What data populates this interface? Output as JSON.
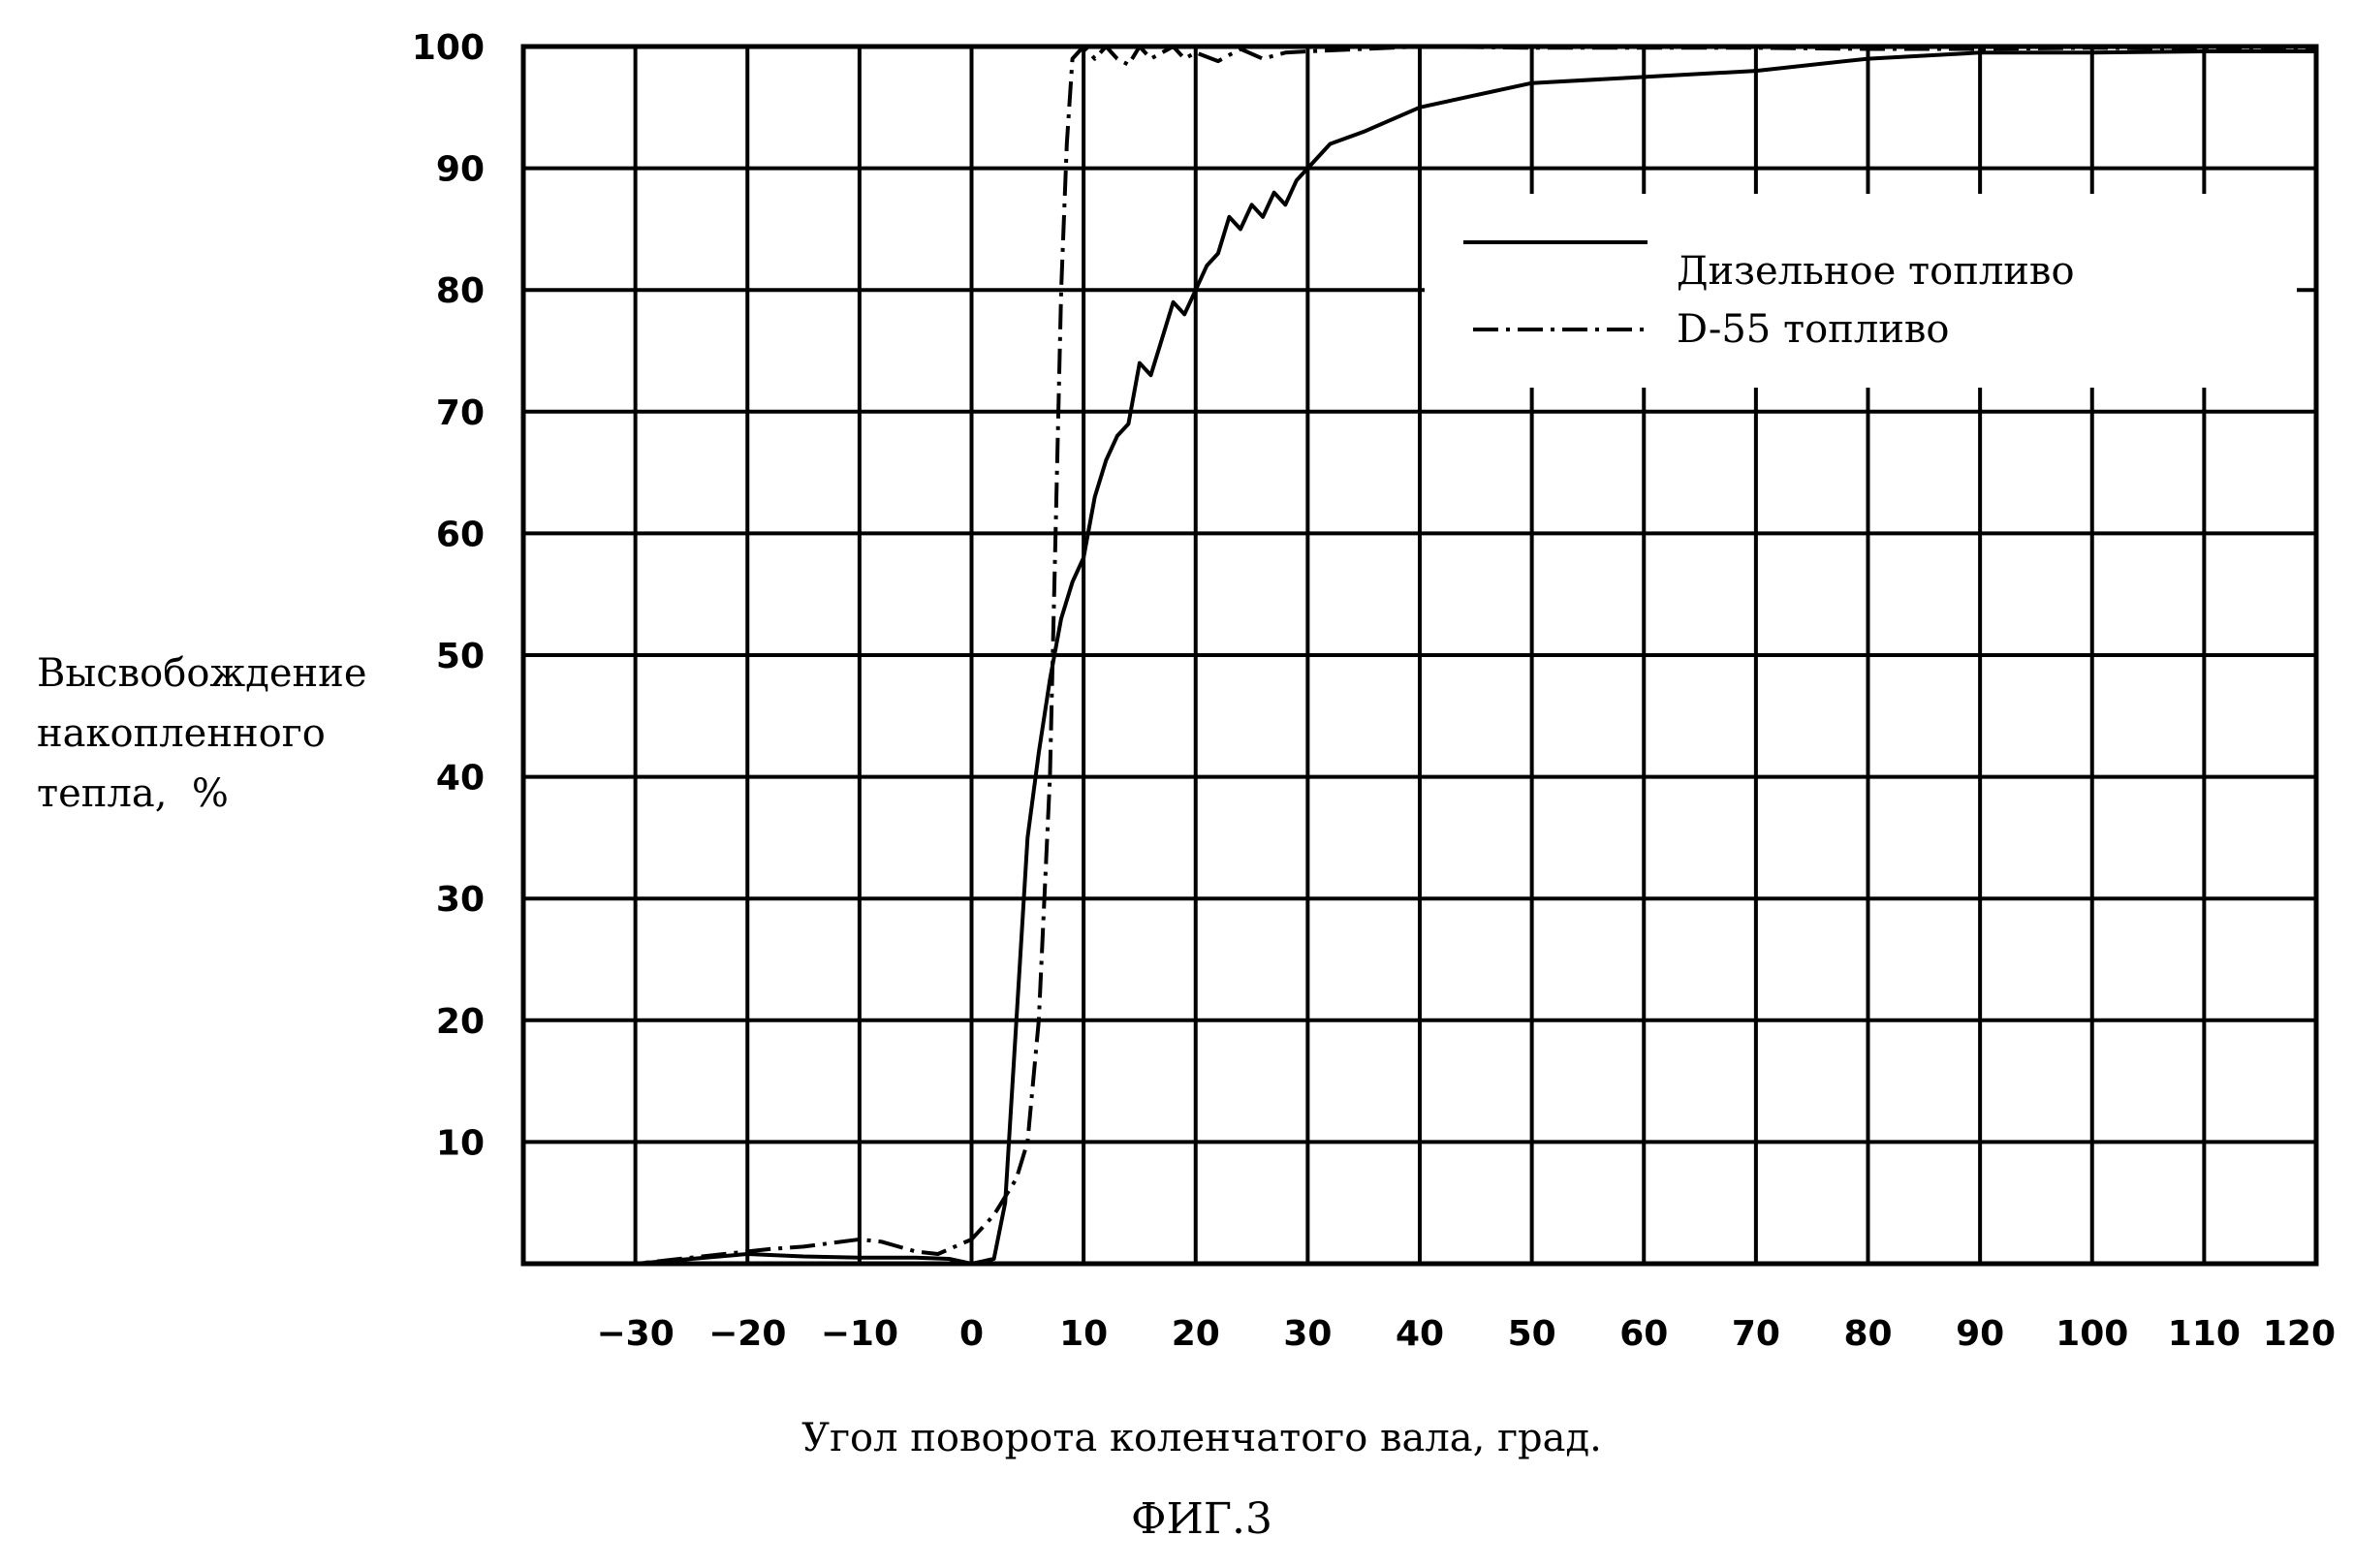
{
  "chart_data": {
    "type": "line",
    "xlabel": "Угол поворота коленчатого вала, град.",
    "ylabel_lines": [
      "Высвобождение",
      "накопленного",
      "тепла,  %"
    ],
    "caption": "ФИГ.3",
    "xlim": [
      -40,
      120
    ],
    "ylim": [
      0,
      100
    ],
    "x_ticks": [
      -30,
      -20,
      -10,
      0,
      10,
      20,
      30,
      40,
      50,
      60,
      70,
      80,
      90,
      100,
      110,
      120
    ],
    "x_tick_labels": [
      "−30",
      "−20",
      "−10",
      "0",
      "10",
      "20",
      "30",
      "40",
      "50",
      "60",
      "70",
      "80",
      "90",
      "100",
      "110",
      "120"
    ],
    "y_ticks": [
      10,
      20,
      30,
      40,
      50,
      60,
      70,
      80,
      90,
      100
    ],
    "y_tick_labels": [
      "10",
      "20",
      "30",
      "40",
      "50",
      "60",
      "70",
      "80",
      "90",
      "100"
    ],
    "grid": true,
    "legend_position": "top-right",
    "series": [
      {
        "name": "Дизельное топливо",
        "style": "solid",
        "x": [
          -40,
          -30,
          -25,
          -20,
          -15,
          -10,
          -5,
          -2,
          0,
          2,
          3,
          4,
          5,
          6,
          7,
          8,
          9,
          10,
          11,
          12,
          13,
          14,
          15,
          16,
          17,
          18,
          19,
          20,
          21,
          22,
          23,
          24,
          25,
          26,
          27,
          28,
          29,
          30,
          32,
          35,
          40,
          45,
          50,
          60,
          70,
          80,
          90,
          100,
          110,
          120
        ],
        "y": [
          0,
          0,
          0.4,
          0.8,
          0.6,
          0.5,
          0.5,
          0.4,
          0,
          0.4,
          5,
          20,
          35,
          42,
          48,
          53,
          56,
          58,
          63,
          66,
          68,
          69,
          74,
          73,
          76,
          79,
          78,
          80,
          82,
          83,
          86,
          85,
          87,
          86,
          88,
          87,
          89,
          90,
          92,
          93,
          95,
          96,
          97,
          97.5,
          98,
          99,
          99.5,
          99.5,
          99.6,
          99.6
        ]
      },
      {
        "name": "D-55 топливо",
        "style": "dash-dot",
        "x": [
          -40,
          -30,
          -25,
          -20,
          -18,
          -15,
          -10,
          -8,
          -5,
          -3,
          0,
          2,
          4,
          5,
          6,
          7,
          7.5,
          8,
          8.5,
          9,
          10,
          11,
          12,
          13,
          14,
          15,
          16,
          17,
          18,
          19,
          20,
          22,
          24,
          26,
          28,
          30,
          35,
          40,
          50,
          60,
          70,
          80,
          90,
          100,
          110,
          120
        ],
        "y": [
          0,
          0,
          0.5,
          1,
          1.2,
          1.4,
          2,
          1.8,
          1,
          0.8,
          2,
          4,
          7,
          10,
          20,
          40,
          60,
          80,
          92,
          99,
          100,
          99,
          100,
          99,
          98.5,
          100,
          99,
          99.5,
          100,
          99,
          99.5,
          98.8,
          99.8,
          99,
          99.5,
          99.6,
          99.8,
          100,
          99.9,
          99.9,
          99.9,
          99.8,
          99.8,
          99.9,
          99.8,
          99.8
        ]
      }
    ]
  }
}
